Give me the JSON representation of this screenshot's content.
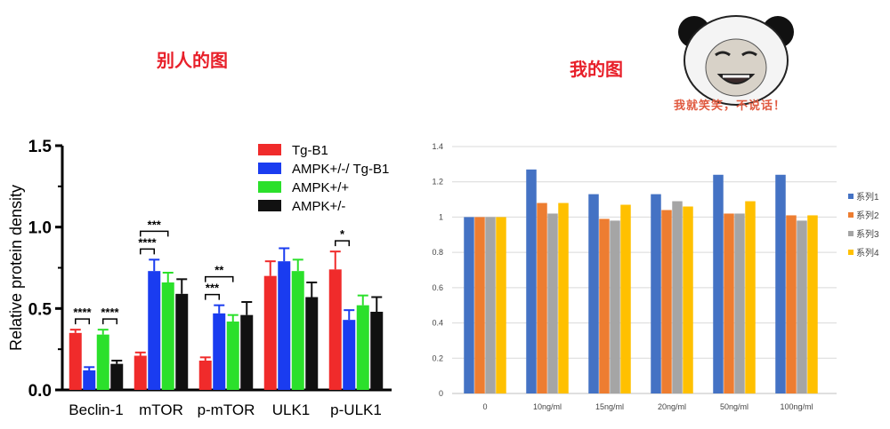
{
  "captions": {
    "left": "别人的图",
    "right": "我的图",
    "meme": "我就笑笑，不说话！"
  },
  "chart_data": [
    {
      "type": "bar",
      "ylabel": "Relative protein density",
      "ylim": [
        0,
        1.5
      ],
      "yticks": [
        "0.0",
        "0.5",
        "1.0",
        "1.5"
      ],
      "categories": [
        "Beclin-1",
        "mTOR",
        "p-mTOR",
        "ULK1",
        "p-ULK1"
      ],
      "legend_position": "top-right",
      "series": [
        {
          "name": "Tg-B1",
          "color": "#f02b2b",
          "values": [
            0.35,
            0.21,
            0.18,
            0.7,
            0.74
          ],
          "errors": [
            0.02,
            0.02,
            0.02,
            0.09,
            0.11
          ]
        },
        {
          "name": "AMPK+/-/ Tg-B1",
          "color": "#1a3cf0",
          "values": [
            0.12,
            0.73,
            0.47,
            0.79,
            0.43
          ],
          "errors": [
            0.02,
            0.07,
            0.05,
            0.08,
            0.06
          ]
        },
        {
          "name": "AMPK+/+",
          "color": "#2be02b",
          "values": [
            0.34,
            0.66,
            0.42,
            0.73,
            0.52
          ],
          "errors": [
            0.03,
            0.06,
            0.04,
            0.07,
            0.06
          ]
        },
        {
          "name": "AMPK+/-",
          "color": "#111111",
          "values": [
            0.16,
            0.59,
            0.46,
            0.57,
            0.48
          ],
          "errors": [
            0.02,
            0.09,
            0.08,
            0.09,
            0.09
          ]
        }
      ],
      "significance": [
        {
          "category": 0,
          "from": 0,
          "to": 1,
          "label": "****",
          "level": 0
        },
        {
          "category": 0,
          "from": 2,
          "to": 3,
          "label": "****",
          "level": 0
        },
        {
          "category": 1,
          "from": 0,
          "to": 1,
          "label": "****",
          "level": 0
        },
        {
          "category": 1,
          "from": 0,
          "to": 2,
          "label": "***",
          "level": 1
        },
        {
          "category": 2,
          "from": 0,
          "to": 1,
          "label": "***",
          "level": 0
        },
        {
          "category": 2,
          "from": 0,
          "to": 2,
          "label": "**",
          "level": 1
        },
        {
          "category": 4,
          "from": 0,
          "to": 1,
          "label": "*",
          "level": 0
        }
      ]
    },
    {
      "type": "bar",
      "ylim": [
        0,
        1.4
      ],
      "yticks": [
        "0",
        "0.2",
        "0.4",
        "0.6",
        "0.8",
        "1",
        "1.2",
        "1.4"
      ],
      "categories": [
        "0",
        "10ng/ml",
        "15ng/ml",
        "20ng/ml",
        "50ng/ml",
        "100ng/ml"
      ],
      "legend_position": "right",
      "series": [
        {
          "name": "系列1",
          "color": "#4472c4",
          "values": [
            1.0,
            1.27,
            1.13,
            1.13,
            1.24,
            1.24
          ]
        },
        {
          "name": "系列2",
          "color": "#ed7d31",
          "values": [
            1.0,
            1.08,
            0.99,
            1.04,
            1.02,
            1.01
          ]
        },
        {
          "name": "系列3",
          "color": "#a5a5a5",
          "values": [
            1.0,
            1.02,
            0.98,
            1.09,
            1.02,
            0.98
          ]
        },
        {
          "name": "系列4",
          "color": "#ffc000",
          "values": [
            1.0,
            1.08,
            1.07,
            1.06,
            1.09,
            1.01
          ]
        }
      ]
    }
  ]
}
